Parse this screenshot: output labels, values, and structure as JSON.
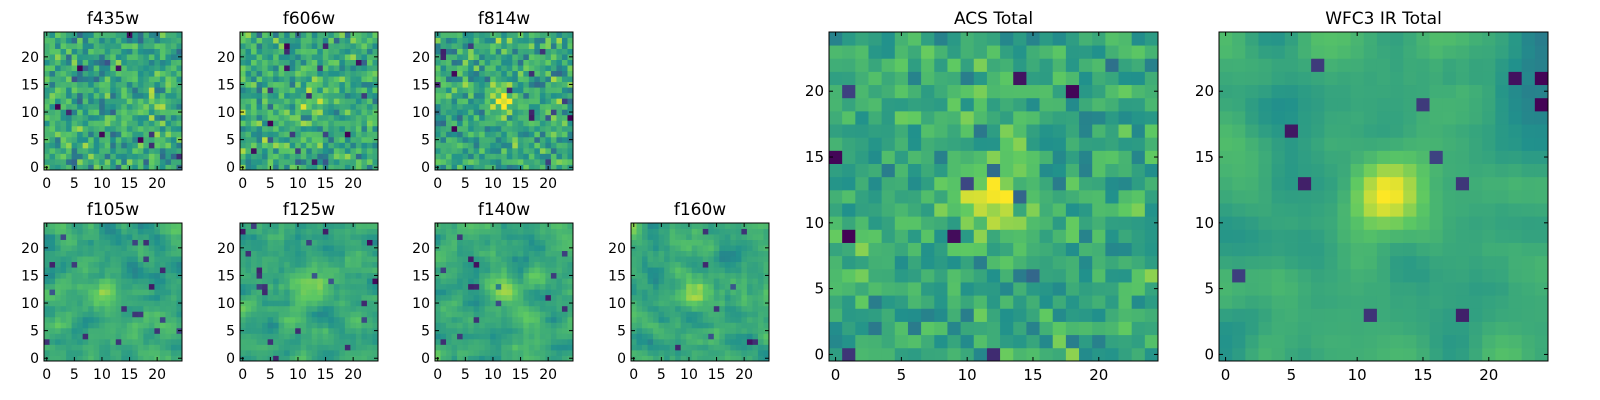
{
  "colors": {
    "colormap": "viridis",
    "viridis_stops": [
      "#440154",
      "#3b528b",
      "#21918c",
      "#5ec962",
      "#fde725"
    ],
    "axis_frame": "#000000",
    "background": "#ffffff"
  },
  "chart_data": [
    {
      "type": "heatmap",
      "title": "f435w",
      "image_size": [
        25,
        25
      ],
      "xticks": [
        "0",
        "5",
        "10",
        "15",
        "20"
      ],
      "yticks": [
        "0",
        "5",
        "10",
        "15",
        "20"
      ],
      "xlim": [
        -0.5,
        24.5
      ],
      "ylim": [
        -0.5,
        24.5
      ],
      "grid": false,
      "peak": [
        12,
        12
      ],
      "signal": 0.05,
      "noise": "high",
      "smooth": 0
    },
    {
      "type": "heatmap",
      "title": "f606w",
      "image_size": [
        25,
        25
      ],
      "xticks": [
        "0",
        "5",
        "10",
        "15",
        "20"
      ],
      "yticks": [
        "0",
        "5",
        "10",
        "15",
        "20"
      ],
      "xlim": [
        -0.5,
        24.5
      ],
      "ylim": [
        -0.5,
        24.5
      ],
      "grid": false,
      "peak": [
        12,
        12
      ],
      "signal": 0.35,
      "noise": "high",
      "smooth": 0
    },
    {
      "type": "heatmap",
      "title": "f814w",
      "image_size": [
        25,
        25
      ],
      "xticks": [
        "0",
        "5",
        "10",
        "15",
        "20"
      ],
      "yticks": [
        "0",
        "5",
        "10",
        "15",
        "20"
      ],
      "xlim": [
        -0.5,
        24.5
      ],
      "ylim": [
        -0.5,
        24.5
      ],
      "grid": false,
      "peak": [
        12,
        12
      ],
      "signal": 0.65,
      "noise": "high",
      "smooth": 0
    },
    {
      "type": "heatmap",
      "title": "f105w",
      "image_size": [
        25,
        25
      ],
      "xticks": [
        "0",
        "5",
        "10",
        "15",
        "20"
      ],
      "yticks": [
        "0",
        "5",
        "10",
        "15",
        "20"
      ],
      "xlim": [
        -0.5,
        24.5
      ],
      "ylim": [
        -0.5,
        24.5
      ],
      "grid": false,
      "peak": [
        11,
        12
      ],
      "signal": 0.7,
      "noise": "medium",
      "smooth": 1
    },
    {
      "type": "heatmap",
      "title": "f125w",
      "image_size": [
        25,
        25
      ],
      "xticks": [
        "0",
        "5",
        "10",
        "15",
        "20"
      ],
      "yticks": [
        "0",
        "5",
        "10",
        "15",
        "20"
      ],
      "xlim": [
        -0.5,
        24.5
      ],
      "ylim": [
        -0.5,
        24.5
      ],
      "grid": false,
      "peak": [
        12,
        13
      ],
      "signal": 0.55,
      "noise": "medium",
      "smooth": 1
    },
    {
      "type": "heatmap",
      "title": "f140w",
      "image_size": [
        25,
        25
      ],
      "xticks": [
        "0",
        "5",
        "10",
        "15",
        "20"
      ],
      "yticks": [
        "0",
        "5",
        "10",
        "15",
        "20"
      ],
      "xlim": [
        -0.5,
        24.5
      ],
      "ylim": [
        -0.5,
        24.5
      ],
      "grid": false,
      "peak": [
        12,
        12
      ],
      "signal": 0.5,
      "noise": "medium",
      "smooth": 1
    },
    {
      "type": "heatmap",
      "title": "f160w",
      "image_size": [
        25,
        25
      ],
      "xticks": [
        "0",
        "5",
        "10",
        "15",
        "20"
      ],
      "yticks": [
        "0",
        "5",
        "10",
        "15",
        "20"
      ],
      "xlim": [
        -0.5,
        24.5
      ],
      "ylim": [
        -0.5,
        24.5
      ],
      "grid": false,
      "peak": [
        11,
        12
      ],
      "signal": 0.6,
      "noise": "medium",
      "smooth": 1
    },
    {
      "type": "heatmap",
      "title": "ACS Total",
      "image_size": [
        25,
        25
      ],
      "xticks": [
        "0",
        "5",
        "10",
        "15",
        "20"
      ],
      "yticks": [
        "0",
        "5",
        "10",
        "15",
        "20"
      ],
      "xlim": [
        -0.5,
        24.5
      ],
      "ylim": [
        -0.5,
        24.5
      ],
      "grid": false,
      "peak": [
        12,
        12
      ],
      "signal": 0.8,
      "noise": "medium",
      "smooth": 0
    },
    {
      "type": "heatmap",
      "title": "WFC3 IR Total",
      "image_size": [
        25,
        25
      ],
      "xticks": [
        "0",
        "5",
        "10",
        "15",
        "20"
      ],
      "yticks": [
        "0",
        "5",
        "10",
        "15",
        "20"
      ],
      "xlim": [
        -0.5,
        24.5
      ],
      "ylim": [
        -0.5,
        24.5
      ],
      "grid": false,
      "peak": [
        12,
        12
      ],
      "signal": 0.9,
      "noise": "low",
      "smooth": 2
    }
  ]
}
